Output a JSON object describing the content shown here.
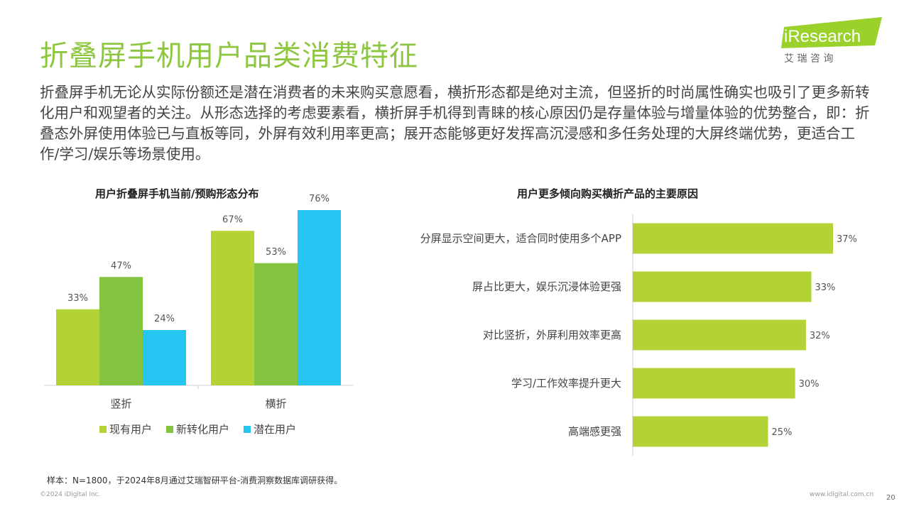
{
  "slide": {
    "title": "折叠屏手机用户品类消费特征",
    "intro": "折叠屏手机无论从实际份额还是潜在消费者的未来购买意愿看，横折形态都是绝对主流，但竖折的时尚属性确实也吸引了更多新转化用户和观望者的关注。从形态选择的考虑要素看，横折屏手机得到青睐的核心原因仍是存量体验与增量体验的优势整合，即：折叠态外屏使用体验已与直板等同，外屏有效利用率更高；展开态能够更好发挥高沉浸感和多任务处理的大屏终端优势，更适合工作/学习/娱乐等场景使用。",
    "note": "样本：N=1800，于2024年8月通过艾瑞智研平台-消费洞察数据库调研获得。",
    "copyright": "©2024 iDigital Inc.",
    "website": "www.idigital.com.cn",
    "page": "20"
  },
  "logo": {
    "brand": "iResearch",
    "sub": "艾 瑞 咨 询"
  },
  "colors": {
    "title": "#8dc63f",
    "series1": "#b3d235",
    "series2": "#84c441",
    "series3": "#27c5f1",
    "bar2": "#b3d235"
  },
  "chart_data": [
    {
      "type": "bar",
      "title": "用户折叠屏手机当前/预购形态分布",
      "categories": [
        "竖折",
        "横折"
      ],
      "series": [
        {
          "name": "现有用户",
          "values": [
            33,
            67
          ],
          "labels": [
            "33%",
            "67%"
          ]
        },
        {
          "name": "新转化用户",
          "values": [
            47,
            53
          ],
          "labels": [
            "47%",
            "53%"
          ]
        },
        {
          "name": "潜在用户",
          "values": [
            24,
            76
          ],
          "labels": [
            "24%",
            "76%"
          ]
        }
      ],
      "ylim": [
        0,
        100
      ],
      "legend": "bottom"
    },
    {
      "type": "bar",
      "orientation": "horizontal",
      "title": "用户更多倾向购买横折产品的主要原因",
      "categories": [
        "分屏显示空间更大，适合同时使用多个APP",
        "屏占比更大，娱乐沉浸体验更强",
        "对比竖折，外屏利用效率更高",
        "学习/工作效率提升更大",
        "高端感更强"
      ],
      "values": [
        37,
        33,
        32,
        30,
        25
      ],
      "labels": [
        "37%",
        "33%",
        "32%",
        "30%",
        "25%"
      ]
    }
  ]
}
